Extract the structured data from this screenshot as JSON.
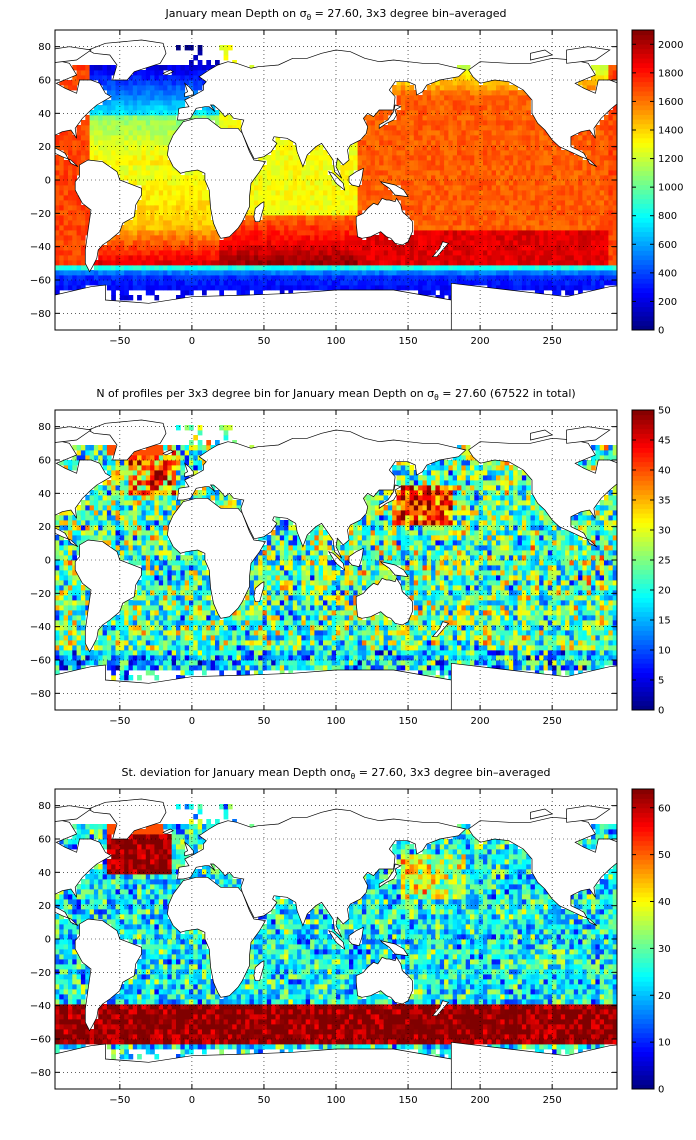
{
  "chart_data": [
    {
      "type": "heatmap",
      "title_parts": [
        "January mean Depth on ",
        "σ",
        "θ",
        " = 27.60, 3x3 degree bin–averaged"
      ],
      "xlim": [
        -95,
        295
      ],
      "ylim": [
        -90,
        90
      ],
      "x_ticks": [
        -50,
        0,
        50,
        100,
        150,
        200,
        250
      ],
      "y_ticks": [
        80,
        60,
        40,
        20,
        0,
        -20,
        -40,
        -60,
        -80
      ],
      "x_tick_labels": [
        "−50",
        "0",
        "50",
        "100",
        "150",
        "200",
        "250"
      ],
      "y_tick_labels": [
        "80",
        "60",
        "40",
        "20",
        "0",
        "−20",
        "−40",
        "−60",
        "−80"
      ],
      "colorbar": {
        "min": 0,
        "max": 2100,
        "ticks": [
          0,
          200,
          400,
          600,
          800,
          1000,
          1200,
          1400,
          1600,
          1800,
          2000
        ],
        "tick_labels": [
          "0",
          "200",
          "400",
          "600",
          "800",
          "1000",
          "1200",
          "1400",
          "1600",
          "1800",
          "2000"
        ]
      },
      "colormap": "jet",
      "grid": true,
      "field": "depth"
    },
    {
      "type": "heatmap",
      "title_parts": [
        "N of profiles per 3x3 degree bin for January mean Depth on ",
        "σ",
        "θ",
        " = 27.60 (67522 in total)"
      ],
      "xlim": [
        -95,
        295
      ],
      "ylim": [
        -90,
        90
      ],
      "x_ticks": [
        -50,
        0,
        50,
        100,
        150,
        200,
        250
      ],
      "y_ticks": [
        80,
        60,
        40,
        20,
        0,
        -20,
        -40,
        -60,
        -80
      ],
      "x_tick_labels": [
        "−50",
        "0",
        "50",
        "100",
        "150",
        "200",
        "250"
      ],
      "y_tick_labels": [
        "80",
        "60",
        "40",
        "20",
        "0",
        "−20",
        "−40",
        "−60",
        "−80"
      ],
      "colorbar": {
        "min": 0,
        "max": 50,
        "ticks": [
          0,
          5,
          10,
          15,
          20,
          25,
          30,
          35,
          40,
          45,
          50
        ],
        "tick_labels": [
          "0",
          "5",
          "10",
          "15",
          "20",
          "25",
          "30",
          "35",
          "40",
          "45",
          "50"
        ]
      },
      "colormap": "jet",
      "grid": true,
      "field": "count"
    },
    {
      "type": "heatmap",
      "title_parts": [
        "St. deviation for January mean Depth on",
        "σ",
        "θ",
        " = 27.60, 3x3 degree bin–averaged"
      ],
      "xlim": [
        -95,
        295
      ],
      "ylim": [
        -90,
        90
      ],
      "x_ticks": [
        -50,
        0,
        50,
        100,
        150,
        200,
        250
      ],
      "y_ticks": [
        80,
        60,
        40,
        20,
        0,
        -20,
        -40,
        -60,
        -80
      ],
      "x_tick_labels": [
        "−50",
        "0",
        "50",
        "100",
        "150",
        "200",
        "250"
      ],
      "y_tick_labels": [
        "80",
        "60",
        "40",
        "20",
        "0",
        "−20",
        "−40",
        "−60",
        "−80"
      ],
      "colorbar": {
        "min": 0,
        "max": 64,
        "ticks": [
          0,
          10,
          20,
          30,
          40,
          50,
          60
        ],
        "tick_labels": [
          "0",
          "10",
          "20",
          "30",
          "40",
          "50",
          "60"
        ]
      },
      "colormap": "jet",
      "grid": true,
      "field": "std"
    }
  ]
}
